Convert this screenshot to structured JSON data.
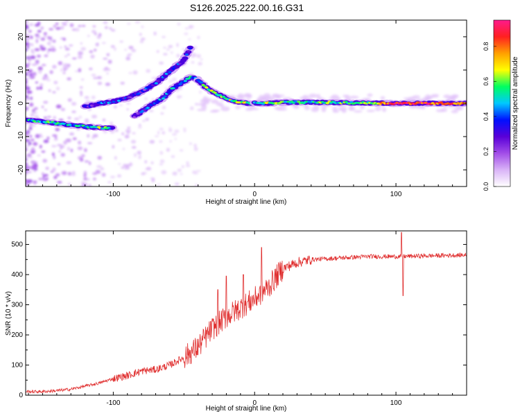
{
  "figure_title": "S126.2025.222.00.16.G31",
  "colors": {
    "snr_line": "#e03030",
    "axis": "#000000",
    "background": "#ffffff"
  },
  "chart_data": [
    {
      "type": "heatmap",
      "title": "S126.2025.222.00.16.G31",
      "xlabel": "Height of straight line (km)",
      "ylabel": "Frequency (Hz)",
      "xlim": [
        -162,
        150
      ],
      "ylim": [
        -25,
        25
      ],
      "xticks": [
        -100,
        0,
        100
      ],
      "xtick_labels": [
        "-100",
        "0",
        "100"
      ],
      "yticks": [
        -20,
        -10,
        0,
        10,
        20
      ],
      "ytick_labels": [
        "-20",
        "-10",
        "0",
        "10",
        "20"
      ],
      "colorbar": {
        "label": "Normalized spectral amplitude",
        "range": [
          0,
          0.95
        ],
        "ticks": [
          0,
          0.2,
          0.4,
          0.6,
          0.8
        ],
        "tick_labels": [
          "0.0",
          "0.2",
          "0.4",
          "0.6",
          "0.8"
        ],
        "colors": [
          "#ffffff",
          "#d9b3f7",
          "#a24de8",
          "#5a00d8",
          "#0010ff",
          "#00c8ff",
          "#00ff60",
          "#ffff00",
          "#ffa000",
          "#ff2020",
          "#ff1a8c"
        ]
      },
      "ridges": [
        {
          "name": "main-ridge",
          "points": [
            [
              -162,
              -5,
              0.45
            ],
            [
              -150,
              -5.5,
              0.5
            ],
            [
              -140,
              -6,
              0.5
            ],
            [
              -130,
              -6.5,
              0.45
            ],
            [
              -120,
              -7,
              0.5
            ],
            [
              -110,
              -7.3,
              0.6
            ],
            [
              -100,
              -7.5,
              0.4
            ]
          ]
        },
        {
          "name": "upper-arm",
          "points": [
            [
              -120,
              -1,
              0.3
            ],
            [
              -110,
              0,
              0.35
            ],
            [
              -100,
              0.5,
              0.4
            ],
            [
              -90,
              1.5,
              0.35
            ],
            [
              -80,
              3.5,
              0.3
            ],
            [
              -70,
              6,
              0.35
            ],
            [
              -60,
              9.5,
              0.4
            ],
            [
              -50,
              13,
              0.35
            ],
            [
              -45,
              17,
              0.3
            ]
          ]
        },
        {
          "name": "lower-arm",
          "points": [
            [
              -85,
              -4,
              0.3
            ],
            [
              -75,
              -1,
              0.35
            ],
            [
              -65,
              1.5,
              0.4
            ],
            [
              -58,
              4.5,
              0.45
            ],
            [
              -50,
              6.5,
              0.45
            ],
            [
              -45,
              8,
              0.5
            ],
            [
              -40,
              7,
              0.5
            ]
          ]
        },
        {
          "name": "descending",
          "points": [
            [
              -40,
              7,
              0.5
            ],
            [
              -35,
              5,
              0.55
            ],
            [
              -30,
              3.5,
              0.6
            ],
            [
              -25,
              2.5,
              0.6
            ],
            [
              -20,
              1.5,
              0.6
            ],
            [
              -15,
              0.8,
              0.6
            ],
            [
              -10,
              0.3,
              0.6
            ],
            [
              -5,
              0,
              0.6
            ],
            [
              0,
              0,
              0.6
            ]
          ]
        },
        {
          "name": "flat-ridge",
          "points": [
            [
              0,
              0,
              0.5
            ],
            [
              10,
              0,
              0.6
            ],
            [
              20,
              0.3,
              0.55
            ],
            [
              40,
              0.3,
              0.55
            ],
            [
              60,
              0.2,
              0.55
            ],
            [
              80,
              0.1,
              0.6
            ],
            [
              95,
              0,
              0.85
            ],
            [
              110,
              0,
              0.9
            ],
            [
              125,
              0,
              0.85
            ],
            [
              140,
              0,
              0.8
            ],
            [
              150,
              0,
              0.75
            ]
          ]
        }
      ]
    },
    {
      "type": "line",
      "xlabel": "Height of straight line (km)",
      "ylabel": "SNR (10 * v/v)",
      "xlim": [
        -162,
        150
      ],
      "ylim": [
        0,
        545
      ],
      "xticks": [
        -100,
        0,
        100
      ],
      "xtick_labels": [
        "-100",
        "0",
        "100"
      ],
      "yticks": [
        0,
        100,
        200,
        300,
        400,
        500
      ],
      "ytick_labels": [
        "0",
        "100",
        "200",
        "300",
        "400",
        "500"
      ],
      "series": [
        {
          "name": "SNR",
          "x": [
            -162,
            -150,
            -140,
            -130,
            -120,
            -110,
            -100,
            -90,
            -80,
            -70,
            -60,
            -50,
            -40,
            -30,
            -20,
            -10,
            0,
            10,
            20,
            30,
            40,
            60,
            80,
            100,
            120,
            150
          ],
          "values": [
            12,
            12,
            15,
            20,
            30,
            40,
            55,
            65,
            80,
            85,
            100,
            125,
            160,
            220,
            260,
            290,
            320,
            360,
            420,
            440,
            450,
            455,
            460,
            460,
            462,
            465
          ],
          "spikes": [
            [
              -26,
              350
            ],
            [
              -20,
              395
            ],
            [
              -8,
              400
            ],
            [
              5,
              490
            ],
            [
              104,
              540
            ],
            [
              105,
              330
            ]
          ]
        }
      ]
    }
  ]
}
